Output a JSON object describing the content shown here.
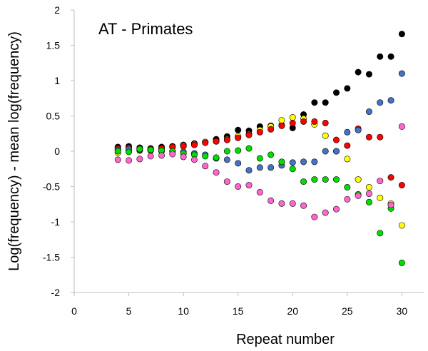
{
  "chart_data": {
    "type": "scatter",
    "title": "AT - Primates",
    "xlabel": "Repeat number",
    "ylabel": "Log(frequency) - mean log(frequency)",
    "xlim": [
      0,
      32
    ],
    "ylim": [
      -2,
      2
    ],
    "xticks": [
      0,
      5,
      10,
      15,
      20,
      25,
      30
    ],
    "yticks": [
      -2,
      -1.5,
      -1,
      -0.5,
      0,
      0.5,
      1,
      1.5,
      2
    ],
    "grid": false,
    "series": [
      {
        "color": "#000000",
        "x": [
          4,
          5,
          6,
          7,
          8,
          9,
          10,
          11,
          12,
          13,
          14,
          15,
          16,
          17,
          18,
          19,
          20,
          21,
          22,
          23,
          24,
          25,
          26,
          27,
          28,
          29,
          30
        ],
        "y": [
          0.06,
          0.07,
          0.05,
          0.04,
          0.06,
          0.07,
          0.09,
          0.11,
          0.13,
          0.17,
          0.21,
          0.3,
          0.29,
          0.35,
          0.36,
          0.37,
          0.33,
          0.52,
          0.69,
          0.69,
          0.83,
          0.89,
          1.12,
          1.09,
          1.34,
          1.34,
          1.66
        ]
      },
      {
        "color": "#ffff00",
        "x": [
          4,
          5,
          6,
          7,
          8,
          9,
          10,
          11,
          12,
          13,
          14,
          15,
          16,
          17,
          18,
          19,
          20,
          21,
          22,
          23,
          24,
          25,
          26,
          27,
          28,
          29,
          30
        ],
        "y": [
          -0.02,
          0.0,
          0.01,
          0.02,
          0.04,
          0.06,
          0.08,
          0.1,
          0.13,
          0.14,
          0.17,
          0.21,
          0.24,
          0.3,
          0.35,
          0.44,
          0.48,
          0.46,
          0.38,
          0.22,
          0.0,
          -0.11,
          -0.4,
          -0.51,
          -0.66,
          -0.74,
          -1.05
        ]
      },
      {
        "color": "#ff0000",
        "x": [
          4,
          5,
          6,
          7,
          8,
          9,
          10,
          11,
          12,
          13,
          14,
          15,
          16,
          17,
          18,
          19,
          20,
          21,
          22,
          23,
          24,
          25,
          26,
          27,
          28,
          29,
          30
        ],
        "y": [
          0.04,
          0.05,
          0.04,
          0.03,
          0.04,
          0.06,
          0.07,
          0.09,
          0.12,
          0.14,
          0.16,
          0.19,
          0.23,
          0.27,
          0.31,
          0.36,
          0.4,
          0.42,
          0.42,
          0.4,
          0.16,
          0.08,
          0.32,
          0.2,
          0.2,
          -0.37,
          -0.48
        ]
      },
      {
        "color": "#4472c4",
        "x": [
          4,
          5,
          6,
          7,
          8,
          9,
          10,
          11,
          12,
          13,
          14,
          15,
          16,
          17,
          18,
          19,
          20,
          21,
          22,
          23,
          24,
          25,
          26,
          27,
          28,
          29,
          30
        ],
        "y": [
          0.02,
          0.03,
          0.02,
          0.01,
          0.0,
          0.0,
          -0.01,
          -0.03,
          -0.05,
          -0.1,
          -0.12,
          -0.17,
          -0.27,
          -0.23,
          -0.23,
          -0.2,
          -0.16,
          -0.15,
          -0.15,
          0.0,
          0.0,
          0.27,
          0.3,
          0.56,
          0.69,
          0.72,
          1.1
        ]
      },
      {
        "color": "#00dd00",
        "x": [
          4,
          5,
          6,
          7,
          8,
          9,
          10,
          11,
          12,
          13,
          14,
          15,
          16,
          17,
          18,
          19,
          20,
          21,
          22,
          23,
          24,
          25,
          26,
          27,
          28,
          29,
          30
        ],
        "y": [
          0.0,
          -0.01,
          0.03,
          0.02,
          0.01,
          0.0,
          -0.03,
          -0.05,
          -0.07,
          -0.09,
          0.0,
          0.01,
          0.04,
          -0.1,
          -0.05,
          -0.15,
          -0.25,
          -0.43,
          -0.4,
          -0.4,
          -0.4,
          -0.51,
          -0.61,
          -0.72,
          -1.16,
          -0.81,
          -1.58
        ]
      },
      {
        "color": "#ff66cc",
        "x": [
          4,
          5,
          6,
          7,
          8,
          9,
          10,
          11,
          12,
          13,
          14,
          15,
          16,
          17,
          18,
          19,
          20,
          21,
          22,
          23,
          24,
          25,
          26,
          27,
          28,
          29,
          30
        ],
        "y": [
          -0.12,
          -0.13,
          -0.11,
          -0.07,
          -0.06,
          -0.04,
          -0.08,
          -0.12,
          -0.21,
          -0.3,
          -0.43,
          -0.5,
          -0.48,
          -0.58,
          -0.7,
          -0.74,
          -0.74,
          -0.77,
          -0.93,
          -0.87,
          -0.82,
          -0.68,
          -0.63,
          -0.6,
          -0.42,
          -0.76,
          0.35
        ]
      }
    ]
  }
}
